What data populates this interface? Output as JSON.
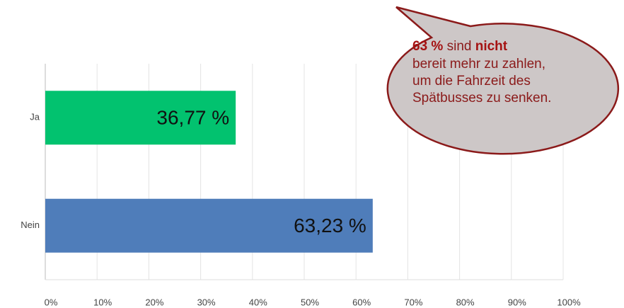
{
  "chart_data": {
    "type": "bar",
    "orientation": "horizontal",
    "categories": [
      "Ja",
      "Nein"
    ],
    "values": [
      36.77,
      63.23
    ],
    "value_labels": [
      "36,77 %",
      "63,23 %"
    ],
    "colors": [
      "#02c26f",
      "#4f7dba"
    ],
    "xlim": [
      0,
      100
    ],
    "xticks": [
      {
        "value": 0,
        "label": "0%"
      },
      {
        "value": 10,
        "label": "10%"
      },
      {
        "value": 20,
        "label": "20%"
      },
      {
        "value": 30,
        "label": "30%"
      },
      {
        "value": 40,
        "label": "40%"
      },
      {
        "value": 50,
        "label": "50%"
      },
      {
        "value": 60,
        "label": "60%"
      },
      {
        "value": 70,
        "label": "70%"
      },
      {
        "value": 80,
        "label": "80%"
      },
      {
        "value": 90,
        "label": "90%"
      },
      {
        "value": 100,
        "label": "100%"
      }
    ],
    "grid": true,
    "annotation": {
      "highlight1": "63 %",
      "middle": " sind ",
      "highlight2": "nicht",
      "lines": [
        "bereit mehr zu zahlen,",
        "um die Fahrzeit des",
        "Spätbusses zu senken."
      ]
    }
  }
}
